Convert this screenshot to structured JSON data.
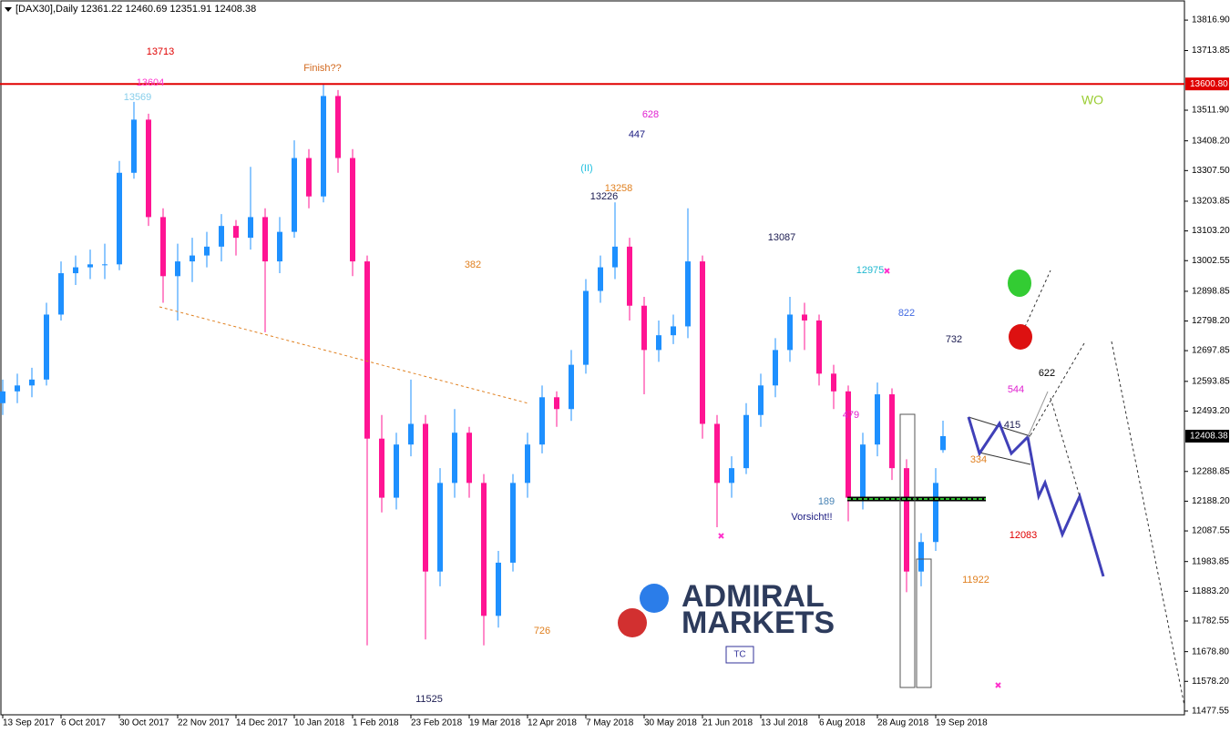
{
  "chart_data": {
    "type": "candlestick",
    "title": "[DAX30],Daily  12361.22 12460.69 12351.91 12408.38",
    "up_color": "#1e90ff",
    "down_color": "#ff1493",
    "x": [
      0,
      4,
      8,
      12,
      16,
      20,
      24,
      28,
      32,
      36,
      40,
      44,
      48,
      52,
      56,
      60,
      64,
      68,
      72,
      76,
      80,
      84,
      88,
      92,
      96,
      100,
      104,
      108,
      112,
      116,
      120,
      124,
      128,
      132,
      136,
      140,
      144,
      148,
      152,
      156,
      160,
      164,
      168,
      172,
      176,
      180,
      184,
      188,
      192,
      196,
      200,
      204,
      208,
      212,
      216,
      220,
      224,
      228,
      232,
      236,
      240,
      244,
      248,
      252,
      256,
      258
    ],
    "open": [
      12520,
      12560,
      12580,
      12600,
      12820,
      12960,
      12980,
      12990,
      12990,
      13300,
      13480,
      13150,
      12950,
      13000,
      13020,
      13050,
      13120,
      13080,
      13150,
      13000,
      13100,
      13350,
      13220,
      13560,
      13350,
      13000,
      12400,
      12200,
      12380,
      12450,
      11950,
      12250,
      12420,
      12250,
      11800,
      11980,
      12250,
      12380,
      12540,
      12500,
      12650,
      12900,
      12980,
      13050,
      12850,
      12700,
      12750,
      12780,
      13000,
      12450,
      12250,
      12300,
      12480,
      12580,
      12700,
      12820,
      12800,
      12620,
      12560,
      12200,
      12380,
      12550,
      12300,
      11950,
      12050,
      12361.22
    ],
    "high": [
      12600,
      12620,
      12640,
      12860,
      13000,
      13020,
      13040,
      13060,
      13340,
      13540,
      13500,
      13180,
      13060,
      13080,
      13100,
      13160,
      13140,
      13320,
      13180,
      13150,
      13410,
      13380,
      13600,
      13580,
      13380,
      13020,
      12480,
      12420,
      12600,
      12480,
      12300,
      12500,
      12440,
      12280,
      12020,
      12280,
      12420,
      12580,
      12560,
      12700,
      12940,
      13020,
      13200,
      13080,
      12880,
      12800,
      12820,
      13180,
      13020,
      12480,
      12340,
      12520,
      12620,
      12740,
      12880,
      12860,
      12820,
      12650,
      12580,
      12420,
      12590,
      12570,
      12330,
      12080,
      12300,
      12460.69
    ],
    "low": [
      12480,
      12520,
      12540,
      12580,
      12800,
      12920,
      12940,
      12940,
      12970,
      13280,
      13120,
      12860,
      12800,
      12930,
      12980,
      13000,
      13020,
      13040,
      12760,
      12960,
      13080,
      13180,
      13200,
      13300,
      12950,
      11700,
      12150,
      12160,
      12340,
      11720,
      11900,
      12200,
      12200,
      11700,
      11760,
      11950,
      12200,
      12350,
      12440,
      12460,
      12620,
      12860,
      12940,
      12800,
      12550,
      12660,
      12720,
      12740,
      12400,
      12100,
      12200,
      12280,
      12440,
      12540,
      12660,
      12700,
      12580,
      12500,
      12120,
      12160,
      12340,
      12260,
      11880,
      11900,
      12020,
      12351.91
    ],
    "close": [
      12560,
      12580,
      12600,
      12820,
      12960,
      12980,
      12990,
      12990,
      13300,
      13480,
      13150,
      12950,
      13000,
      13020,
      13050,
      13120,
      13080,
      13150,
      13000,
      13100,
      13350,
      13220,
      13560,
      13350,
      13000,
      12400,
      12200,
      12380,
      12450,
      11950,
      12250,
      12420,
      12250,
      11800,
      11980,
      12250,
      12380,
      12540,
      12500,
      12650,
      12900,
      12980,
      13050,
      12850,
      12700,
      12750,
      12780,
      13000,
      12450,
      12250,
      12300,
      12480,
      12580,
      12700,
      12820,
      12800,
      12620,
      12560,
      12200,
      12380,
      12550,
      12300,
      11950,
      12050,
      12250,
      12408.38
    ],
    "xlim": [
      -0.75,
      324.25
    ],
    "ylim": [
      11465,
      13885
    ],
    "xticks": [
      {
        "value": 0,
        "label": "13 Sep 2017"
      },
      {
        "value": 16,
        "label": "6 Oct 2017"
      },
      {
        "value": 32,
        "label": "30 Oct 2017"
      },
      {
        "value": 48,
        "label": "22 Nov 2017"
      },
      {
        "value": 64,
        "label": "14 Dec 2017"
      },
      {
        "value": 80,
        "label": "10 Jan 2018"
      },
      {
        "value": 96,
        "label": "1 Feb 2018"
      },
      {
        "value": 112,
        "label": "23 Feb 2018"
      },
      {
        "value": 128,
        "label": "19 Mar 2018"
      },
      {
        "value": 144,
        "label": "12 Apr 2018"
      },
      {
        "value": 160,
        "label": "7 May 2018"
      },
      {
        "value": 176,
        "label": "30 May 2018"
      },
      {
        "value": 192,
        "label": "21 Jun 2018"
      },
      {
        "value": 208,
        "label": "13 Jul 2018"
      },
      {
        "value": 224,
        "label": "6 Aug 2018"
      },
      {
        "value": 240,
        "label": "28 Aug 2018"
      },
      {
        "value": 256,
        "label": "19 Sep 2018"
      }
    ],
    "yticks": [
      {
        "value": 13816.9,
        "label": "13816.90"
      },
      13713.85,
      {
        "value": 13511.9,
        "label": "13511.90"
      },
      {
        "value": 13408.2,
        "label": "13408.20"
      },
      {
        "value": 13307.5,
        "label": "13307.50"
      },
      13203.85,
      {
        "value": 13103.2,
        "label": "13103.20"
      },
      13002.55,
      12898.85,
      {
        "value": 12798.2,
        "label": "12798.20"
      },
      12697.85,
      12593.85,
      {
        "value": 12493.2,
        "label": "12493.20"
      },
      12288.85,
      {
        "value": 12188.2,
        "label": "12188.20"
      },
      12087.55,
      11983.85,
      {
        "value": 11883.2,
        "label": "11883.20"
      },
      11782.55,
      {
        "value": 11678.8,
        "label": "11678.80"
      },
      {
        "value": 11578.2,
        "label": "11578.20"
      },
      11477.55
    ],
    "hline": {
      "value": 13600.8,
      "label": "13600.80",
      "color": "#e00000"
    },
    "last_price": {
      "value": 12408.38,
      "label": "12408.38"
    },
    "annotations": [
      {
        "text": "13713",
        "color": "#e00000"
      },
      {
        "text": "13604",
        "color": "#ff33cc"
      },
      {
        "text": "13569",
        "color": "#87ceeb"
      },
      {
        "text": "Finish??",
        "color": "#d2691e"
      },
      {
        "text": "628",
        "color": "#e020d0"
      },
      {
        "text": "447",
        "color": "#1a1a80"
      },
      {
        "text": "(II)",
        "color": "#20c0e0"
      },
      {
        "text": "13258",
        "color": "#e08020"
      },
      {
        "text": "13226",
        "color": "#1a1a50"
      },
      {
        "text": "382",
        "color": "#e08020"
      },
      {
        "text": "13087",
        "color": "#1a1a50"
      },
      {
        "text": "12975",
        "color": "#20b8d0"
      },
      {
        "text": "822",
        "color": "#4169e1"
      },
      {
        "text": "732",
        "color": "#1a1a50"
      },
      {
        "text": "622",
        "color": "#000000"
      },
      {
        "text": "544",
        "color": "#e020d0"
      },
      {
        "text": "415",
        "color": "#1a1a50"
      },
      {
        "text": "334",
        "color": "#e08020"
      },
      {
        "text": "479",
        "color": "#e020d0"
      },
      {
        "text": "189",
        "color": "#4682b4"
      },
      {
        "text": "Vorsicht!!",
        "color": "#1a1a80"
      },
      {
        "text": "12083",
        "color": "#e00000"
      },
      {
        "text": "11922",
        "color": "#e08020"
      },
      {
        "text": "726",
        "color": "#e08020"
      },
      {
        "text": "11525",
        "color": "#1a1a50"
      },
      {
        "text": "WO",
        "color": "#9acd32"
      }
    ],
    "logo": [
      "ADMIRAL",
      "MARKETS"
    ],
    "button": "TC"
  }
}
